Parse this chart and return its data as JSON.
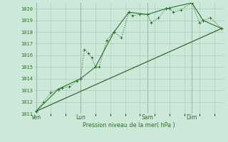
{
  "bg_color": "#cce8d8",
  "grid_color": "#aaccb8",
  "line_color": "#2d6e2d",
  "title": "Pression niveau de la mer( hPa )",
  "ylim": [
    1011,
    1020.5
  ],
  "yticks": [
    1011,
    1012,
    1013,
    1014,
    1015,
    1016,
    1017,
    1018,
    1019,
    1020
  ],
  "xtick_labels": [
    "Ven",
    "Lun",
    "Sam",
    "Dim"
  ],
  "xtick_pos": [
    0,
    24,
    60,
    84
  ],
  "xlim": [
    -1,
    101
  ],
  "vlines": [
    0,
    24,
    60,
    84
  ],
  "series_dotted": [
    [
      0,
      1011.2
    ],
    [
      4,
      1012.0
    ],
    [
      8,
      1012.8
    ],
    [
      12,
      1013.1
    ],
    [
      14,
      1013.2
    ],
    [
      18,
      1013.3
    ],
    [
      22,
      1013.8
    ],
    [
      24,
      1014.0
    ],
    [
      26,
      1016.5
    ],
    [
      28,
      1016.2
    ],
    [
      30,
      1015.8
    ],
    [
      32,
      1015.0
    ],
    [
      34,
      1015.0
    ],
    [
      38,
      1017.3
    ],
    [
      42,
      1018.0
    ],
    [
      46,
      1017.5
    ],
    [
      50,
      1019.7
    ],
    [
      52,
      1019.4
    ],
    [
      56,
      1019.5
    ],
    [
      60,
      1019.5
    ],
    [
      62,
      1018.8
    ],
    [
      66,
      1019.2
    ],
    [
      70,
      1020.0
    ],
    [
      72,
      1020.0
    ],
    [
      74,
      1019.7
    ],
    [
      78,
      1019.9
    ],
    [
      84,
      1020.5
    ],
    [
      88,
      1018.8
    ],
    [
      90,
      1019.0
    ],
    [
      94,
      1019.2
    ],
    [
      100,
      1018.3
    ]
  ],
  "series_smooth": [
    [
      0,
      1011.2
    ],
    [
      12,
      1013.1
    ],
    [
      24,
      1014.0
    ],
    [
      32,
      1015.0
    ],
    [
      42,
      1018.0
    ],
    [
      50,
      1019.7
    ],
    [
      60,
      1019.5
    ],
    [
      70,
      1020.0
    ],
    [
      84,
      1020.5
    ],
    [
      90,
      1019.0
    ],
    [
      100,
      1018.3
    ]
  ],
  "series_trend": [
    [
      0,
      1011.2
    ],
    [
      100,
      1018.3
    ]
  ]
}
